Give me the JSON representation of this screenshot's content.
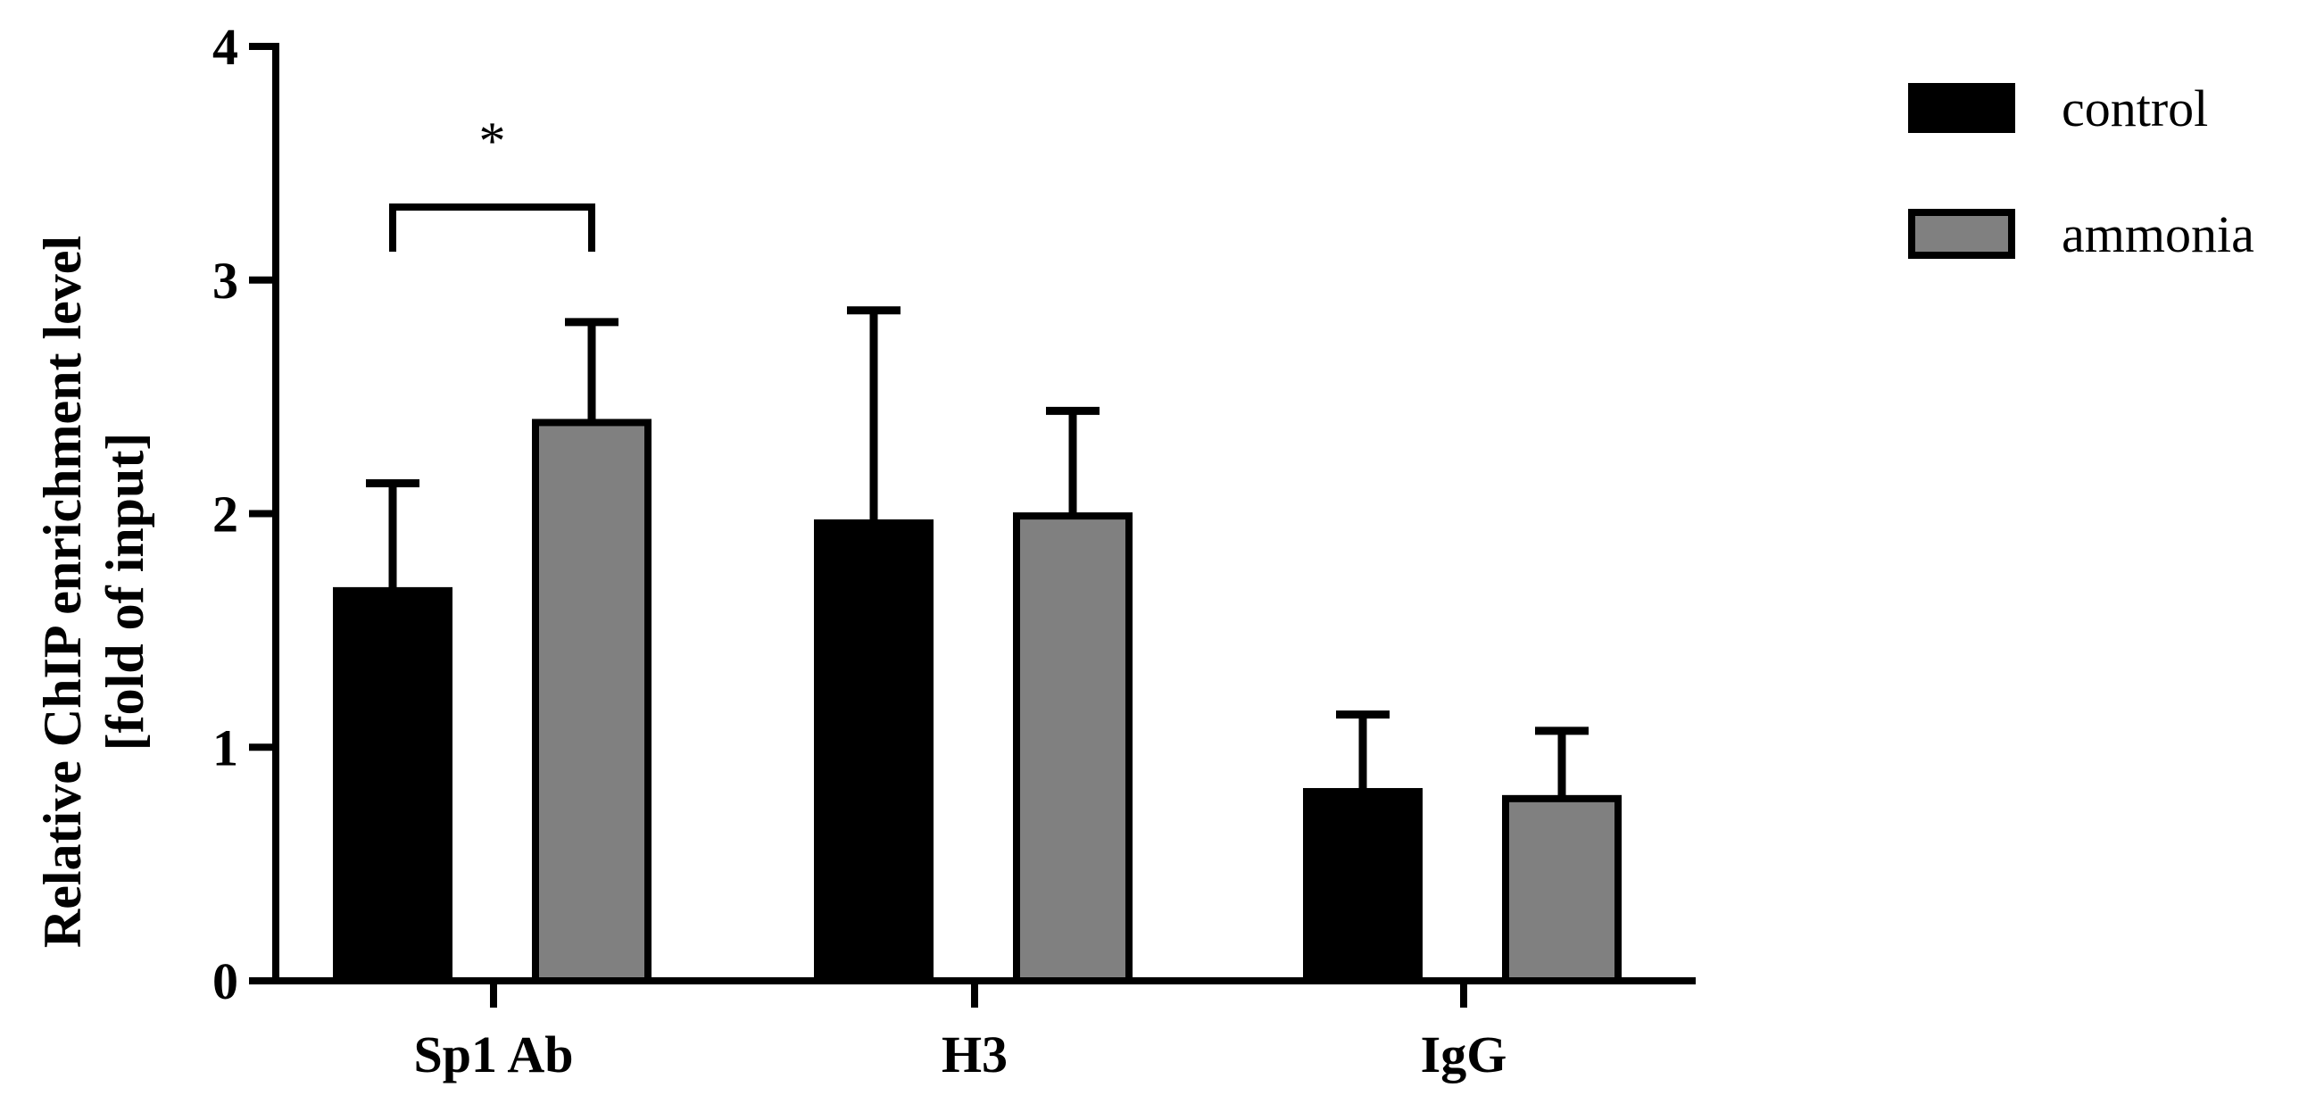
{
  "chart_data": {
    "type": "bar",
    "categories": [
      "Sp1 Ab",
      "H3",
      "IgG"
    ],
    "series": [
      {
        "name": "control",
        "values": [
          1.67,
          1.96,
          0.81
        ],
        "errors": [
          0.46,
          0.91,
          0.33
        ],
        "color": "#000000"
      },
      {
        "name": "ammonia",
        "values": [
          2.39,
          1.99,
          0.78
        ],
        "errors": [
          0.43,
          0.45,
          0.29
        ],
        "color": "#808080"
      }
    ],
    "ylabel_line1": "Relative ChIP enrichment level",
    "ylabel_line2": "[fold of input]",
    "ylim": [
      0,
      4
    ],
    "yticks": [
      "0",
      "1",
      "2",
      "3",
      "4"
    ],
    "legend_position": "top-right",
    "significance": {
      "category": "Sp1 Ab",
      "label": "*"
    }
  }
}
